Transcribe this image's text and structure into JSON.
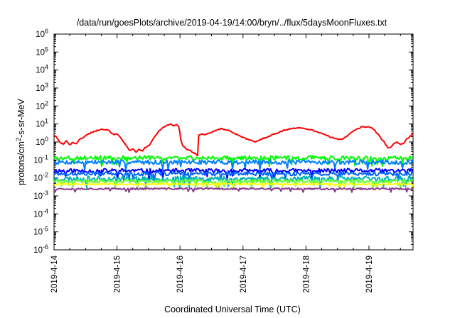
{
  "chart_data": {
    "type": "line",
    "title": "/data/run/goesPlots/archive/2019-04-19/14:00/bryn/../flux/5daysMoonFluxes.txt",
    "xlabel": "Coordinated Universal Time (UTC)",
    "ylabel": {
      "prefix": "protons/cm",
      "sup": "2",
      "suffix": "-s-sr-MeV"
    },
    "yscale": "log",
    "ylim": [
      1e-06,
      1000000.0
    ],
    "yticks": [
      {
        "exp": -6
      },
      {
        "exp": -5
      },
      {
        "exp": -4
      },
      {
        "exp": -3
      },
      {
        "exp": -2
      },
      {
        "exp": -1
      },
      {
        "exp": 0
      },
      {
        "exp": 1
      },
      {
        "exp": 2
      },
      {
        "exp": 3
      },
      {
        "exp": 4
      },
      {
        "exp": 5
      },
      {
        "exp": 6
      }
    ],
    "ytick_base": "10",
    "xlim": [
      0,
      5.7
    ],
    "xticks": [
      {
        "day": 0,
        "label": "2019-4-14"
      },
      {
        "day": 1,
        "label": "2019-4-15"
      },
      {
        "day": 2,
        "label": "2019-4-16"
      },
      {
        "day": 3,
        "label": "2019-4-17"
      },
      {
        "day": 4,
        "label": "2019-4-18"
      },
      {
        "day": 5,
        "label": "2019-4-19"
      }
    ],
    "x_unit": "days since 2019-04-14 00:00 UTC",
    "grid": false,
    "legend": "none",
    "series": [
      {
        "color": "#ff0000",
        "noise": 0.03,
        "points": [
          [
            0,
            2.5
          ],
          [
            0.05,
            1.6
          ],
          [
            0.1,
            0.9
          ],
          [
            0.15,
            0.75
          ],
          [
            0.2,
            1.2
          ],
          [
            0.25,
            0.7
          ],
          [
            0.3,
            0.95
          ],
          [
            0.35,
            0.8
          ],
          [
            0.4,
            1.3
          ],
          [
            0.5,
            2.2
          ],
          [
            0.6,
            3.5
          ],
          [
            0.7,
            4.5
          ],
          [
            0.75,
            5.5
          ],
          [
            0.8,
            4.8
          ],
          [
            0.85,
            5.0
          ],
          [
            0.9,
            3.5
          ],
          [
            0.95,
            2.5
          ],
          [
            1.0,
            2.8
          ],
          [
            1.05,
            2.0
          ],
          [
            1.1,
            1.0
          ],
          [
            1.15,
            0.6
          ],
          [
            1.2,
            0.3
          ],
          [
            1.25,
            0.45
          ],
          [
            1.3,
            0.25
          ],
          [
            1.35,
            0.4
          ],
          [
            1.4,
            0.3
          ],
          [
            1.45,
            0.5
          ],
          [
            1.5,
            0.6
          ],
          [
            1.55,
            1.0
          ],
          [
            1.6,
            2.0
          ],
          [
            1.65,
            3.5
          ],
          [
            1.7,
            5.5
          ],
          [
            1.75,
            7.0
          ],
          [
            1.8,
            8.5
          ],
          [
            1.85,
            10
          ],
          [
            1.9,
            8.0
          ],
          [
            1.95,
            9.5
          ],
          [
            1.98,
            7.0
          ],
          [
            2.0,
            3.0
          ],
          [
            2.02,
            0.9
          ],
          [
            2.05,
            0.6
          ],
          [
            2.1,
            0.4
          ],
          [
            2.15,
            0.35
          ],
          [
            2.2,
            0.25
          ],
          [
            2.25,
            0.22
          ],
          [
            2.28,
            0.18
          ],
          [
            2.29,
            2.5
          ],
          [
            2.35,
            2.8
          ],
          [
            2.4,
            2.5
          ],
          [
            2.45,
            3.0
          ],
          [
            2.5,
            3.5
          ],
          [
            2.55,
            4.0
          ],
          [
            2.6,
            4.8
          ],
          [
            2.65,
            5.5
          ],
          [
            2.7,
            5.0
          ],
          [
            2.75,
            4.5
          ],
          [
            2.8,
            4.0
          ],
          [
            2.85,
            3.2
          ],
          [
            2.9,
            2.6
          ],
          [
            2.95,
            2.2
          ],
          [
            3.0,
            1.8
          ],
          [
            3.05,
            1.5
          ],
          [
            3.1,
            1.3
          ],
          [
            3.15,
            1.1
          ],
          [
            3.2,
            1.0
          ],
          [
            3.25,
            1.2
          ],
          [
            3.3,
            1.5
          ],
          [
            3.4,
            2.0
          ],
          [
            3.5,
            2.8
          ],
          [
            3.6,
            3.8
          ],
          [
            3.7,
            5.0
          ],
          [
            3.8,
            5.8
          ],
          [
            3.9,
            6.0
          ],
          [
            4.0,
            5.5
          ],
          [
            4.1,
            4.5
          ],
          [
            4.2,
            3.5
          ],
          [
            4.3,
            2.5
          ],
          [
            4.4,
            1.8
          ],
          [
            4.5,
            1.5
          ],
          [
            4.55,
            1.4
          ],
          [
            4.6,
            1.6
          ],
          [
            4.65,
            2.0
          ],
          [
            4.7,
            3.0
          ],
          [
            4.75,
            4.0
          ],
          [
            4.8,
            5.0
          ],
          [
            4.85,
            6.0
          ],
          [
            4.9,
            7.5
          ],
          [
            4.95,
            6.5
          ],
          [
            5.0,
            7.0
          ],
          [
            5.05,
            6.0
          ],
          [
            5.1,
            4.0
          ],
          [
            5.15,
            2.5
          ],
          [
            5.2,
            1.5
          ],
          [
            5.25,
            0.9
          ],
          [
            5.28,
            0.6
          ],
          [
            5.3,
            0.45
          ],
          [
            5.35,
            0.5
          ],
          [
            5.4,
            0.9
          ],
          [
            5.45,
            1.0
          ],
          [
            5.5,
            0.7
          ],
          [
            5.55,
            0.8
          ],
          [
            5.6,
            1.5
          ],
          [
            5.65,
            2.0
          ],
          [
            5.7,
            3.0
          ]
        ]
      },
      {
        "color": "#00ff00",
        "level": 0.13,
        "noise": 0.12,
        "seed": 3
      },
      {
        "color": "#0080ff",
        "level": 0.075,
        "noise": 0.12,
        "seed": 7
      },
      {
        "color": "#0000ff",
        "level": 0.025,
        "noise": 0.12,
        "seed": 11
      },
      {
        "color": "#0066ff",
        "level": 0.017,
        "noise": 0.1,
        "seed": 17
      },
      {
        "color": "#00b3b3",
        "level": 0.009,
        "noise": 0.14,
        "seed": 23
      },
      {
        "color": "#66ff33",
        "level": 0.0065,
        "noise": 0.1,
        "seed": 29
      },
      {
        "color": "#ffff00",
        "level": 0.0045,
        "noise": 0.04,
        "seed": 31
      },
      {
        "color": "#8b3a8b",
        "level": 0.0025,
        "noise": 0.05,
        "seed": 37
      }
    ]
  }
}
